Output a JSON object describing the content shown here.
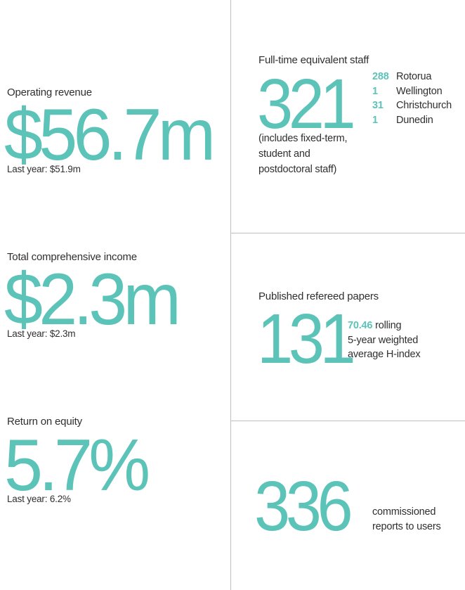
{
  "left": {
    "revenue": {
      "label": "Operating revenue",
      "value": "$56.7m",
      "last_year": "Last year: $51.9m"
    },
    "income": {
      "label": "Total comprehensive income",
      "value": "$2.3m",
      "last_year": "Last year: $2.3m"
    },
    "equity": {
      "label": "Return on equity",
      "value": "5.7%",
      "last_year": "Last year: 6.2%"
    }
  },
  "right": {
    "staff": {
      "label": "Full-time equivalent staff",
      "value": "321",
      "note_lines": [
        "(includes fixed-term,",
        "student and",
        "postdoctoral staff)"
      ],
      "locations": [
        {
          "count": "288",
          "name": "Rotorua"
        },
        {
          "count": "1",
          "name": "Wellington"
        },
        {
          "count": "31",
          "name": "Christchurch"
        },
        {
          "count": "1",
          "name": "Dunedin"
        }
      ]
    },
    "papers": {
      "label": "Published refereed papers",
      "value": "131",
      "h_index_value": "70.46",
      "h_index_line1_rest": " rolling",
      "h_index_line2": "5-year weighted",
      "h_index_line3": "average H-index"
    },
    "reports": {
      "value": "336",
      "desc_line1": "commissioned",
      "desc_line2": "reports to users"
    }
  },
  "colors": {
    "accent": "#5cc3b8",
    "text": "#2f2f2f",
    "divider": "#bfbfbf"
  }
}
